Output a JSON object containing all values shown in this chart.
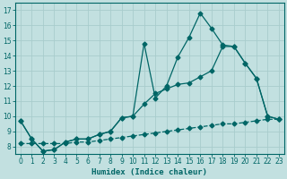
{
  "title": "",
  "xlabel": "Humidex (Indice chaleur)",
  "ylabel": "",
  "bg_color": "#c2e0e0",
  "grid_color": "#b0d0d0",
  "line_color": "#006666",
  "xlim": [
    -0.5,
    23.5
  ],
  "ylim": [
    7.5,
    17.5
  ],
  "xticks": [
    0,
    1,
    2,
    3,
    4,
    5,
    6,
    7,
    8,
    9,
    10,
    11,
    12,
    13,
    14,
    15,
    16,
    17,
    18,
    19,
    20,
    21,
    22,
    23
  ],
  "yticks": [
    8,
    9,
    10,
    11,
    12,
    13,
    14,
    15,
    16,
    17
  ],
  "line1_x": [
    0,
    1,
    2,
    3,
    4,
    5,
    6,
    7,
    8,
    9,
    10,
    11,
    12,
    13,
    14,
    15,
    16,
    17,
    18,
    19,
    20,
    21,
    22,
    23
  ],
  "line1_y": [
    9.7,
    8.5,
    7.7,
    7.8,
    8.3,
    8.5,
    8.5,
    8.8,
    9.0,
    9.9,
    10.0,
    10.8,
    11.5,
    11.8,
    12.1,
    12.2,
    12.6,
    13.0,
    14.6,
    14.6,
    13.5,
    12.5,
    10.0,
    9.8
  ],
  "line2_x": [
    0,
    1,
    2,
    3,
    4,
    5,
    6,
    7,
    8,
    9,
    10,
    11,
    12,
    13,
    14,
    15,
    16,
    17,
    18,
    19,
    20,
    21,
    22,
    23
  ],
  "line2_y": [
    9.7,
    8.5,
    7.7,
    7.8,
    8.3,
    8.5,
    8.5,
    8.8,
    9.0,
    9.9,
    10.0,
    14.8,
    11.2,
    12.0,
    13.9,
    15.2,
    16.8,
    15.8,
    14.7,
    14.6,
    13.5,
    12.5,
    10.0,
    9.8
  ],
  "line3_x": [
    0,
    1,
    2,
    3,
    4,
    5,
    6,
    7,
    8,
    9,
    10,
    11,
    12,
    13,
    14,
    15,
    16,
    17,
    18,
    19,
    20,
    21,
    22,
    23
  ],
  "line3_y": [
    8.2,
    8.2,
    8.2,
    8.2,
    8.2,
    8.3,
    8.3,
    8.4,
    8.5,
    8.6,
    8.7,
    8.8,
    8.9,
    9.0,
    9.1,
    9.2,
    9.3,
    9.4,
    9.5,
    9.5,
    9.6,
    9.7,
    9.8,
    9.8
  ],
  "marker": "D",
  "markersize": 2.5,
  "linewidth": 0.9
}
